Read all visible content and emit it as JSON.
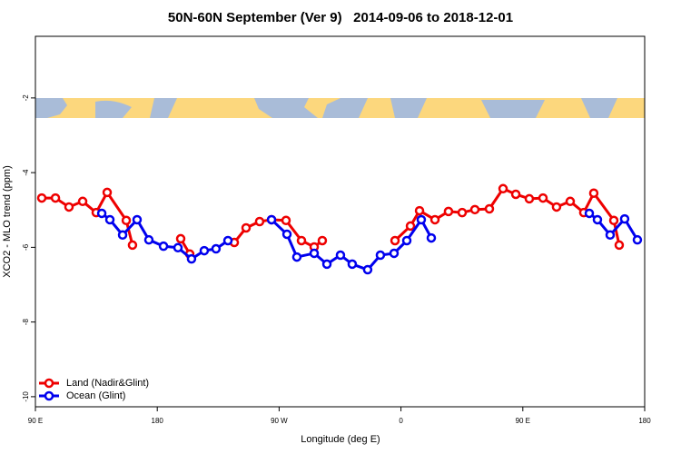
{
  "chart_data": {
    "type": "line",
    "title": "50N-60N September (Ver 9)   2014-09-06 to 2018-12-01",
    "xlabel": "Longitude (deg E)",
    "ylabel": "XCO2 - MLO trend (ppm)",
    "xlim": [
      90,
      540
    ],
    "ylim": [
      -10.27,
      -0.35
    ],
    "xticks": [
      {
        "value": 90,
        "label": "90 E"
      },
      180,
      {
        "value": 270,
        "label": "90 W"
      },
      {
        "value": 360,
        "label": "0"
      },
      {
        "value": 450,
        "label": "90 E"
      },
      {
        "value": 540,
        "label": "180"
      }
    ],
    "yticks": [
      -2,
      -4,
      -6,
      -8,
      -10
    ],
    "legend": "bottomleft",
    "series": [
      {
        "name": "Land (Nadir&Glint)",
        "color": "#ee0000",
        "x": [
          94.7,
          104.8,
          114.8,
          124.9,
          134.9,
          143.0,
          157.1,
          161.7,
          null,
          197.3,
          204.0,
          null,
          236.9,
          245.6,
          255.6,
          264.4,
          275.1,
          286.5,
          295.9,
          301.9,
          null,
          355.6,
          367.0,
          373.7,
          385.1,
          395.1,
          405.2,
          414.6,
          425.3,
          435.4,
          444.8,
          454.8,
          464.9,
          474.9,
          485.0,
          495.0,
          502.4,
          517.2,
          521.2
        ],
        "values": [
          -4.68,
          -4.68,
          -4.92,
          -4.77,
          -5.07,
          -4.53,
          -5.28,
          -5.94,
          null,
          -5.77,
          -6.18,
          null,
          -5.87,
          -5.48,
          -5.31,
          -5.26,
          -5.28,
          -5.82,
          -5.99,
          -5.82,
          null,
          -5.82,
          -5.43,
          -5.02,
          -5.26,
          -5.04,
          -5.07,
          -4.99,
          -4.97,
          -4.43,
          -4.58,
          -4.7,
          -4.68,
          -4.92,
          -4.77,
          -5.07,
          -4.55,
          -5.28,
          -5.94
        ]
      },
      {
        "name": "Ocean (Glint)",
        "color": "#0000ee",
        "x": [
          139.0,
          145.0,
          154.4,
          165.1,
          173.8,
          184.6,
          195.3,
          205.3,
          214.7,
          223.4,
          232.2,
          null,
          264.4,
          275.8,
          283.1,
          295.9,
          305.3,
          315.3,
          324.0,
          335.4,
          344.8,
          354.9,
          364.3,
          375.0,
          382.4,
          null,
          499.1,
          505.1,
          514.5,
          525.2,
          534.6
        ],
        "values": [
          -5.09,
          -5.26,
          -5.67,
          -5.26,
          -5.8,
          -5.97,
          -6.01,
          -6.31,
          -6.09,
          -6.04,
          -5.82,
          null,
          -5.26,
          -5.65,
          -6.26,
          -6.16,
          -6.45,
          -6.21,
          -6.45,
          -6.6,
          -6.21,
          -6.16,
          -5.82,
          -5.26,
          -5.75,
          null,
          -5.09,
          -5.26,
          -5.67,
          -5.24,
          -5.8
        ]
      }
    ]
  }
}
